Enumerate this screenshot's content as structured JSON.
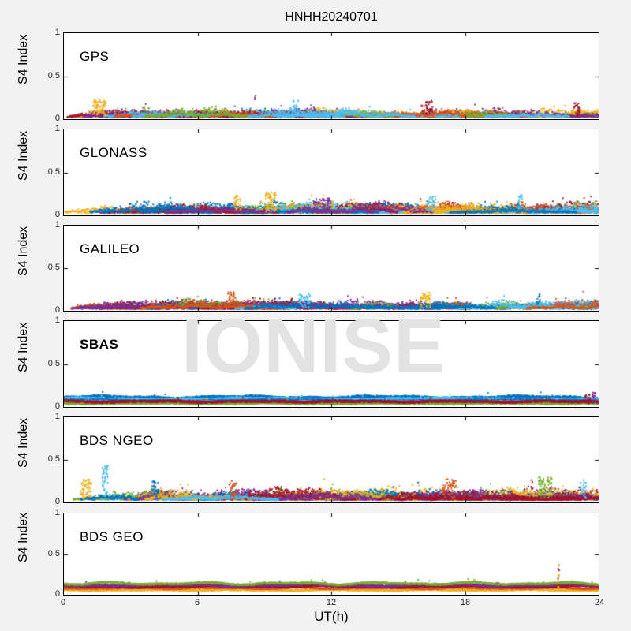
{
  "title": "HNHH20240701",
  "watermark": {
    "text": "IONISE",
    "color": "#e3e3e3"
  },
  "axes": {
    "xlabel": "UT(h)",
    "ylabel": "S4 Index",
    "xlim": [
      0,
      24
    ],
    "ylim": [
      0,
      1
    ],
    "xticks": [
      0,
      6,
      12,
      18,
      24
    ],
    "xtick_labels": [
      "0",
      "6",
      "12",
      "18",
      "24"
    ],
    "yticks": [
      0,
      0.5,
      1
    ],
    "ytick_labels": [
      "0",
      "0.5",
      "1"
    ],
    "inner_xticks": [
      6,
      12,
      18
    ],
    "grid": false,
    "legend": "none"
  },
  "colors": {
    "background": "#f2f2f2",
    "panel_bg": "#ffffff",
    "axis_line": "#000000",
    "tick_label": "#262626",
    "palette": [
      "#0072BD",
      "#D95319",
      "#EDB120",
      "#7E2F8E",
      "#77AC30",
      "#4DBEEE",
      "#A2142F"
    ]
  },
  "chart_data": [
    {
      "type": "scatter",
      "panel": "GPS",
      "bold_label": false,
      "xlim": [
        0,
        24
      ],
      "ylim": [
        0,
        1
      ],
      "mode": "arcs",
      "n_series": 26,
      "seed": 7,
      "base": 0.02,
      "amp": 0.085,
      "band_typical_max": 0.18,
      "events": [
        {
          "t": 1.6,
          "peak": 0.24,
          "color": "#EDB120",
          "width": 0.6,
          "n": 70
        },
        {
          "t": 8.6,
          "peak": 0.28,
          "color": "#7E2F8E",
          "width": 0.08,
          "n": 4
        },
        {
          "t": 10.4,
          "peak": 0.22,
          "color": "#4DBEEE",
          "width": 0.25,
          "n": 25
        },
        {
          "t": 16.3,
          "peak": 0.22,
          "color": "#A2142F",
          "width": 0.5,
          "n": 40
        },
        {
          "t": 23.0,
          "peak": 0.2,
          "color": "#A2142F",
          "width": 0.3,
          "n": 25
        }
      ]
    },
    {
      "type": "scatter",
      "panel": "GLONASS",
      "bold_label": false,
      "xlim": [
        0,
        24
      ],
      "ylim": [
        0,
        1
      ],
      "mode": "arcs",
      "n_series": 24,
      "seed": 13,
      "base": 0.025,
      "amp": 0.11,
      "band_typical_max": 0.2,
      "events": [
        {
          "t": 7.8,
          "peak": 0.24,
          "color": "#EDB120",
          "width": 0.3,
          "n": 30
        },
        {
          "t": 9.3,
          "peak": 0.27,
          "color": "#EDB120",
          "width": 0.5,
          "n": 60
        },
        {
          "t": 11.6,
          "peak": 0.2,
          "color": "#7E2F8E",
          "width": 0.8,
          "n": 60
        },
        {
          "t": 16.5,
          "peak": 0.22,
          "color": "#4DBEEE",
          "width": 0.4,
          "n": 35
        },
        {
          "t": 20.5,
          "peak": 0.24,
          "color": "#4DBEEE",
          "width": 0.2,
          "n": 20
        }
      ]
    },
    {
      "type": "scatter",
      "panel": "GALILEO",
      "bold_label": false,
      "xlim": [
        0,
        24
      ],
      "ylim": [
        0,
        1
      ],
      "mode": "arcs",
      "n_series": 22,
      "seed": 21,
      "base": 0.02,
      "amp": 0.09,
      "band_typical_max": 0.16,
      "events": [
        {
          "t": 7.5,
          "peak": 0.22,
          "color": "#D95319",
          "width": 0.3,
          "n": 30
        },
        {
          "t": 10.8,
          "peak": 0.2,
          "color": "#4DBEEE",
          "width": 0.5,
          "n": 40
        },
        {
          "t": 16.2,
          "peak": 0.22,
          "color": "#EDB120",
          "width": 0.5,
          "n": 45
        },
        {
          "t": 21.3,
          "peak": 0.2,
          "color": "#0072BD",
          "width": 0.15,
          "n": 15
        }
      ]
    },
    {
      "type": "scatter",
      "panel": "SBAS",
      "bold_label": true,
      "xlim": [
        0,
        24
      ],
      "ylim": [
        0,
        1
      ],
      "mode": "continuous",
      "seed": 43,
      "noise": 0.025,
      "band_typical_max": 0.15,
      "series": [
        {
          "color": "#0072BD",
          "level": 0.11
        },
        {
          "color": "#4DBEEE",
          "level": 0.09
        },
        {
          "color": "#0072BD",
          "level": 0.07
        },
        {
          "color": "#4DBEEE",
          "level": 0.055
        },
        {
          "color": "#EDB120",
          "level": 0.05
        },
        {
          "color": "#77AC30",
          "level": 0.04
        },
        {
          "color": "#A2142F",
          "level": 0.06
        }
      ],
      "events": [
        {
          "t": 23.8,
          "peak": 0.17,
          "color": "#7E2F8E",
          "width": 0.15,
          "n": 12
        },
        {
          "t": 23.5,
          "peak": 0.15,
          "color": "#A2142F",
          "width": 0.3,
          "n": 20
        }
      ]
    },
    {
      "type": "scatter",
      "panel": "BDS NGEO",
      "bold_label": false,
      "xlim": [
        0,
        24
      ],
      "ylim": [
        0,
        1
      ],
      "mode": "arcs",
      "n_series": 24,
      "seed": 31,
      "base": 0.025,
      "amp": 0.12,
      "band_typical_max": 0.22,
      "events": [
        {
          "t": 1.0,
          "peak": 0.27,
          "color": "#EDB120",
          "width": 0.5,
          "n": 60
        },
        {
          "t": 1.85,
          "peak": 0.45,
          "color": "#4DBEEE",
          "width": 0.25,
          "n": 45
        },
        {
          "t": 4.1,
          "peak": 0.25,
          "color": "#0072BD",
          "width": 0.3,
          "n": 30
        },
        {
          "t": 7.6,
          "peak": 0.26,
          "color": "#D95319",
          "width": 0.3,
          "n": 30
        },
        {
          "t": 17.3,
          "peak": 0.28,
          "color": "#D95319",
          "width": 0.6,
          "n": 50
        },
        {
          "t": 21.0,
          "peak": 0.3,
          "color": "#A2142F",
          "width": 0.06,
          "n": 5
        },
        {
          "t": 21.6,
          "peak": 0.3,
          "color": "#77AC30",
          "width": 0.6,
          "n": 60
        },
        {
          "t": 23.3,
          "peak": 0.27,
          "color": "#4DBEEE",
          "width": 0.3,
          "n": 25
        }
      ]
    },
    {
      "type": "scatter",
      "panel": "BDS GEO",
      "bold_label": false,
      "xlim": [
        0,
        24
      ],
      "ylim": [
        0,
        1
      ],
      "mode": "continuous",
      "seed": 59,
      "noise": 0.018,
      "band_typical_max": 0.16,
      "series": [
        {
          "color": "#EDB120",
          "level": 0.055
        },
        {
          "color": "#D95319",
          "level": 0.08
        },
        {
          "color": "#A2142F",
          "level": 0.098
        },
        {
          "color": "#7E2F8E",
          "level": 0.115
        },
        {
          "color": "#77AC30",
          "level": 0.135
        }
      ],
      "events": [
        {
          "t": 22.2,
          "peak": 0.37,
          "color": "#EDB120",
          "width": 0.06,
          "n": 10
        },
        {
          "t": 22.2,
          "peak": 0.34,
          "color": "#A2142F",
          "width": 0.05,
          "n": 4
        }
      ]
    }
  ]
}
